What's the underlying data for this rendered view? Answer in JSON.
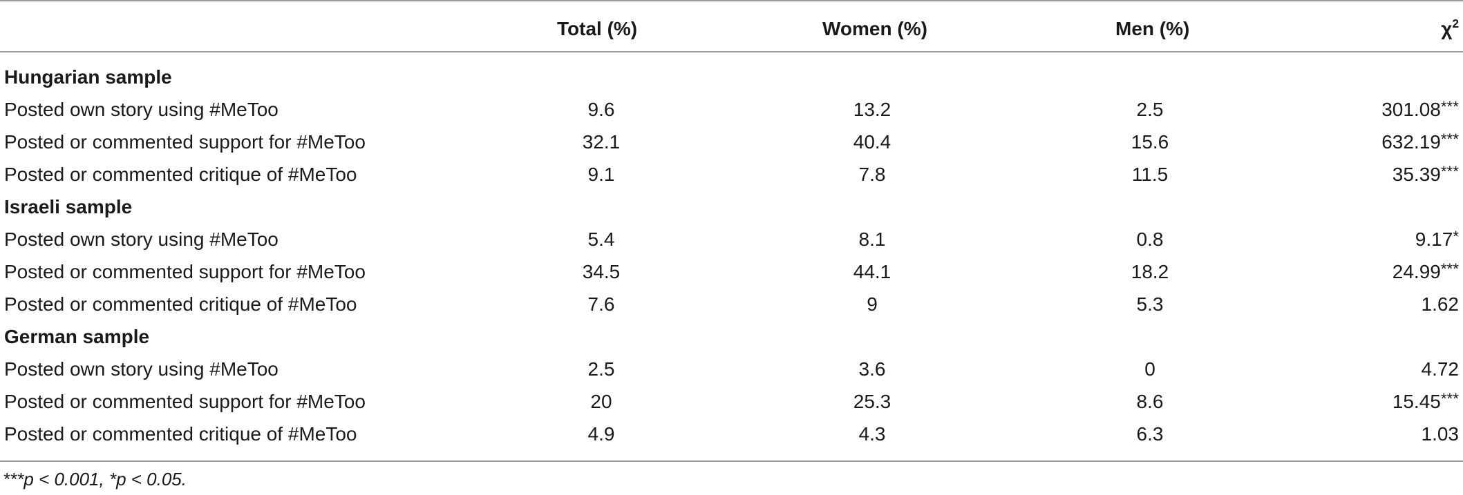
{
  "table": {
    "headers": {
      "label": "",
      "total": "Total (%)",
      "women": "Women (%)",
      "men": "Men (%)",
      "chi_base": "χ",
      "chi_sup": "2"
    },
    "sections": [
      {
        "title": "Hungarian sample",
        "rows": [
          {
            "label": "Posted own story using #MeToo",
            "total": "9.6",
            "women": "13.2",
            "men": "2.5",
            "chi": "301.08***"
          },
          {
            "label": "Posted or commented support for #MeToo",
            "total": "32.1",
            "women": "40.4",
            "men": "15.6",
            "chi": "632.19***"
          },
          {
            "label": "Posted or commented critique of #MeToo",
            "total": "9.1",
            "women": "7.8",
            "men": "11.5",
            "chi": "35.39***"
          }
        ]
      },
      {
        "title": "Israeli sample",
        "rows": [
          {
            "label": "Posted own story using #MeToo",
            "total": "5.4",
            "women": "8.1",
            "men": "0.8",
            "chi": "9.17*"
          },
          {
            "label": "Posted or commented support for #MeToo",
            "total": "34.5",
            "women": "44.1",
            "men": "18.2",
            "chi": "24.99***"
          },
          {
            "label": "Posted or commented critique of #MeToo",
            "total": "7.6",
            "women": "9",
            "men": "5.3",
            "chi": "1.62"
          }
        ]
      },
      {
        "title": "German sample",
        "rows": [
          {
            "label": "Posted own story using #MeToo",
            "total": "2.5",
            "women": "3.6",
            "men": "0",
            "chi": "4.72"
          },
          {
            "label": "Posted or commented support for #MeToo",
            "total": "20",
            "women": "25.3",
            "men": "8.6",
            "chi": "15.45***"
          },
          {
            "label": "Posted or commented critique of #MeToo",
            "total": "4.9",
            "women": "4.3",
            "men": "6.3",
            "chi": "1.03"
          }
        ]
      }
    ],
    "footnote": "***p < 0.001, *p < 0.05."
  }
}
